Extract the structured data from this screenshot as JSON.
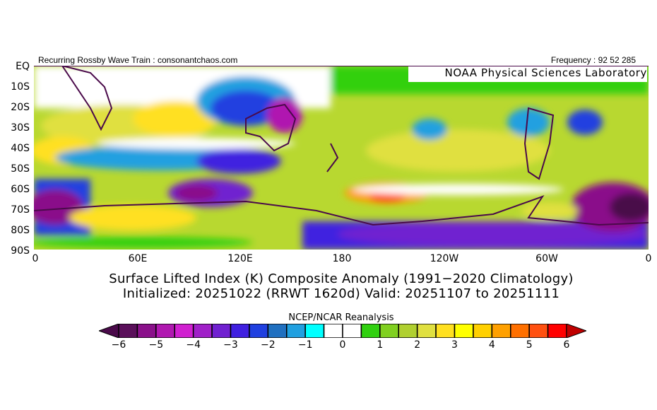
{
  "header": {
    "left_text": "Recurring Rossby Wave Train : consonantchaos.com",
    "right_text": "Frequency : 92 52 285",
    "overlay_label": "NOAA Physical Sciences Laboratory"
  },
  "map": {
    "lat_labels": [
      "EQ",
      "10S",
      "20S",
      "30S",
      "40S",
      "50S",
      "60S",
      "70S",
      "80S",
      "90S"
    ],
    "lon_labels": [
      "0",
      "60E",
      "120E",
      "180",
      "120W",
      "60W",
      "0"
    ]
  },
  "title": {
    "line1": "Surface Lifted Index (K) Composite Anomaly (1991−2020 Climatology)",
    "line2": "Initialized: 20251022 (RRWT 1620d) Valid: 20251107 to 20251111"
  },
  "colorbar": {
    "title": "NCEP/NCAR Reanalysis",
    "tick_labels": [
      "−6",
      "−5",
      "−4",
      "−3",
      "−2",
      "−1",
      "0",
      "1",
      "2",
      "3",
      "4",
      "5",
      "6"
    ],
    "range": [
      -6,
      6
    ],
    "step": 0.5,
    "under_color": "#4a0a4a",
    "over_color": "#c00000",
    "colors": [
      "#5a0f5a",
      "#8a108a",
      "#b018b0",
      "#d020d0",
      "#a020c8",
      "#7020d0",
      "#4020e0",
      "#2040e0",
      "#2070c0",
      "#20a0e0",
      "#00ffff",
      "#ffffff",
      "#ffffff",
      "#30d010",
      "#80d020",
      "#b0d030",
      "#e0e040",
      "#ffe020",
      "#ffff00",
      "#ffd000",
      "#ffa000",
      "#ff7000",
      "#ff5010",
      "#ff0000"
    ]
  }
}
